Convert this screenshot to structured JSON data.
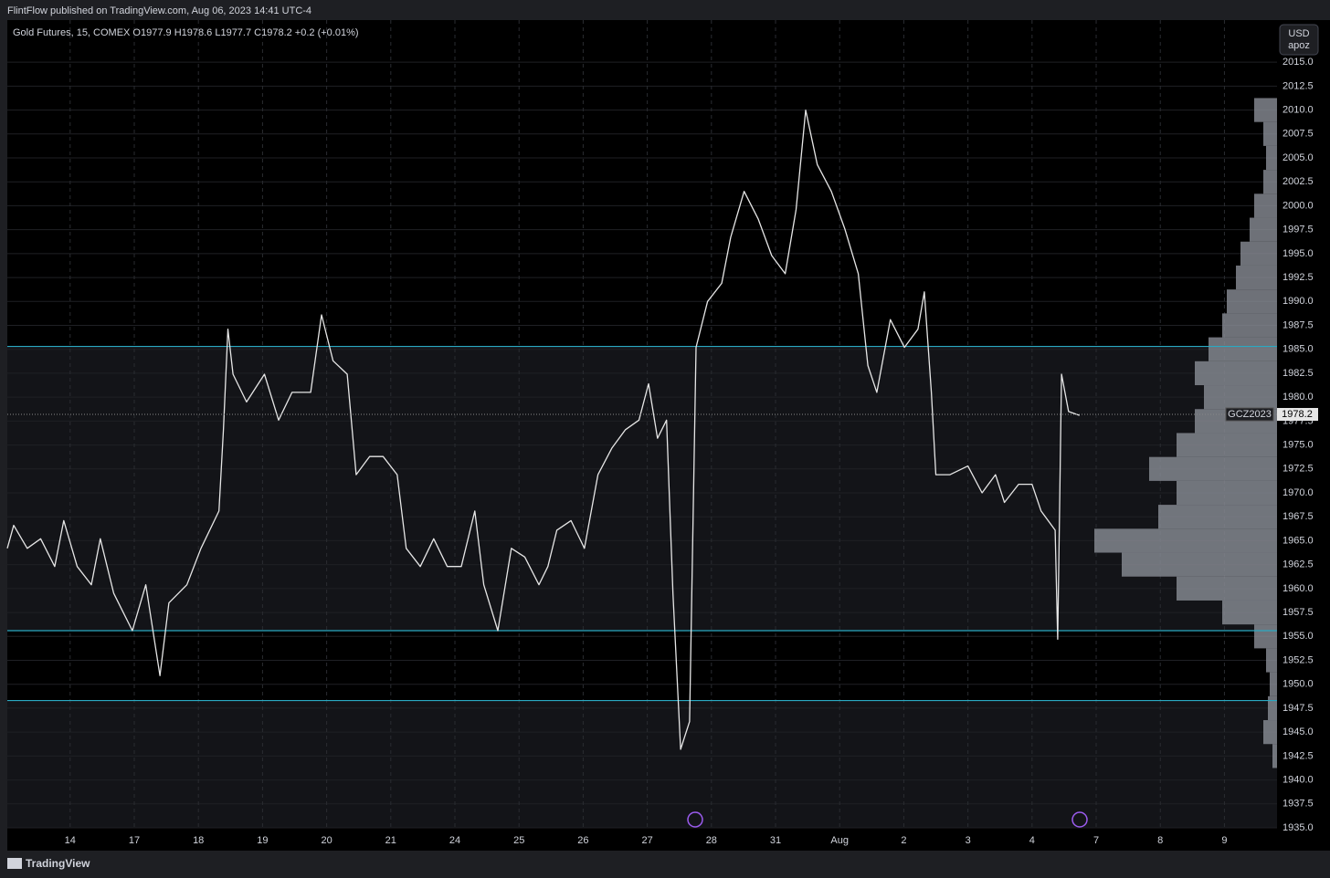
{
  "header": {
    "publisher": "FlintFlow published on TradingView.com, Aug 06, 2023 14:41 UTC-4",
    "footer": "TradingView"
  },
  "chart_data": {
    "type": "line",
    "legend_text": "Gold Futures, 15, COMEX  O1977.9  H1978.6  L1977.7  C1978.2  +0.2 (+0.01%)",
    "currency": "USD",
    "currency_sub": "apoz",
    "symbol": "GCZ2023",
    "last_price": {
      "value": 1978.2,
      "label": "1978.2"
    },
    "x": [
      -0.98,
      -0.88,
      -0.67,
      -0.46,
      -0.24,
      -0.1,
      0.11,
      0.33,
      0.47,
      0.68,
      0.97,
      1.18,
      1.4,
      1.54,
      1.82,
      2.04,
      2.32,
      2.39,
      2.46,
      2.54,
      2.75,
      3.03,
      3.25,
      3.46,
      3.75,
      3.92,
      4.1,
      4.32,
      4.46,
      4.67,
      4.88,
      5.1,
      5.24,
      5.46,
      5.67,
      5.88,
      6.1,
      6.31,
      6.45,
      6.67,
      6.88,
      7.09,
      7.31,
      7.45,
      7.59,
      7.81,
      8.02,
      8.23,
      8.45,
      8.66,
      8.87,
      9.02,
      9.16,
      9.3,
      9.4,
      9.52,
      9.66,
      9.76,
      9.94,
      10.16,
      10.3,
      10.51,
      10.73,
      10.94,
      11.15,
      11.32,
      11.47,
      11.65,
      11.87,
      12.08,
      12.29,
      12.44,
      12.58,
      12.79,
      13.01,
      13.22,
      13.32,
      13.43,
      13.5,
      13.72,
      14.0,
      14.22,
      14.43,
      14.57,
      14.79,
      15.0,
      15.14,
      15.36,
      15.4,
      15.46,
      15.57,
      15.74
    ],
    "series": [
      {
        "color": "#e6e6e6",
        "values": [
          1964.2,
          1966.6,
          1964.2,
          1965.2,
          1962.3,
          1967.1,
          1962.3,
          1960.4,
          1965.2,
          1959.5,
          1955.6,
          1960.4,
          1950.9,
          1958.5,
          1960.4,
          1964.2,
          1968.1,
          1976.6,
          1987.1,
          1982.4,
          1979.5,
          1982.4,
          1977.6,
          1980.5,
          1980.5,
          1988.6,
          1983.8,
          1982.4,
          1971.9,
          1973.8,
          1973.8,
          1971.9,
          1964.2,
          1962.3,
          1965.2,
          1962.3,
          1962.3,
          1968.1,
          1960.4,
          1955.6,
          1964.2,
          1963.3,
          1960.4,
          1962.3,
          1966.1,
          1967.1,
          1964.2,
          1971.9,
          1974.7,
          1976.6,
          1977.6,
          1981.4,
          1975.7,
          1977.6,
          1959.5,
          1943.2,
          1946.1,
          1985.2,
          1990.0,
          1991.9,
          1996.7,
          2001.5,
          1998.6,
          1994.8,
          1992.9,
          1999.6,
          2010.0,
          2004.3,
          2001.5,
          1997.6,
          1992.9,
          1983.3,
          1980.5,
          1988.1,
          1985.2,
          1987.1,
          1991.0,
          1980.5,
          1971.9,
          1971.9,
          1972.8,
          1970.0,
          1971.9,
          1969.0,
          1970.9,
          1970.9,
          1968.1,
          1966.1,
          1954.7,
          1982.4,
          1978.5,
          1978.1
        ]
      }
    ],
    "levels": {
      "color": "#2aa9c2",
      "values": [
        1985.3,
        1955.6,
        1948.3
      ]
    },
    "volume_profile": {
      "color": "#8a8d96",
      "prices": [
        2010,
        2007.5,
        2005,
        2002.5,
        2000,
        1997.5,
        1995,
        1992.5,
        1990,
        1987.5,
        1985,
        1982.5,
        1980,
        1977.5,
        1975,
        1972.5,
        1970,
        1967.5,
        1965,
        1962.5,
        1960,
        1957.5,
        1955,
        1952.5,
        1950,
        1947.5,
        1945,
        1942.5
      ],
      "values": [
        25,
        15,
        12,
        15,
        25,
        30,
        40,
        45,
        55,
        60,
        75,
        90,
        80,
        90,
        110,
        140,
        110,
        130,
        200,
        170,
        110,
        60,
        25,
        12,
        8,
        10,
        15,
        5
      ]
    },
    "xlim": [
      -0.98,
      18.82
    ],
    "ylim": [
      1935,
      2019.4
    ],
    "grid": true,
    "xticks": [
      {
        "value": 0,
        "label": "14"
      },
      {
        "value": 1,
        "label": "17"
      },
      {
        "value": 2,
        "label": "18"
      },
      {
        "value": 3,
        "label": "19"
      },
      {
        "value": 4,
        "label": "20"
      },
      {
        "value": 5,
        "label": "21"
      },
      {
        "value": 6,
        "label": "24"
      },
      {
        "value": 7,
        "label": "25"
      },
      {
        "value": 8,
        "label": "26"
      },
      {
        "value": 9,
        "label": "27"
      },
      {
        "value": 10,
        "label": "28"
      },
      {
        "value": 11,
        "label": "31"
      },
      {
        "value": 12,
        "label": "Aug"
      },
      {
        "value": 13,
        "label": "2"
      },
      {
        "value": 14,
        "label": "3"
      },
      {
        "value": 15,
        "label": "4"
      },
      {
        "value": 16,
        "label": "7"
      },
      {
        "value": 17,
        "label": "8"
      },
      {
        "value": 18,
        "label": "9"
      }
    ],
    "yticks": [
      {
        "value": 1935,
        "label": "1935.0"
      },
      {
        "value": 1937.5,
        "label": "1937.5"
      },
      {
        "value": 1940,
        "label": "1940.0"
      },
      {
        "value": 1942.5,
        "label": "1942.5"
      },
      {
        "value": 1945,
        "label": "1945.0"
      },
      {
        "value": 1947.5,
        "label": "1947.5"
      },
      {
        "value": 1950,
        "label": "1950.0"
      },
      {
        "value": 1952.5,
        "label": "1952.5"
      },
      {
        "value": 1955,
        "label": "1955.0"
      },
      {
        "value": 1957.5,
        "label": "1957.5"
      },
      {
        "value": 1960,
        "label": "1960.0"
      },
      {
        "value": 1962.5,
        "label": "1962.5"
      },
      {
        "value": 1965,
        "label": "1965.0"
      },
      {
        "value": 1967.5,
        "label": "1967.5"
      },
      {
        "value": 1970,
        "label": "1970.0"
      },
      {
        "value": 1972.5,
        "label": "1972.5"
      },
      {
        "value": 1975,
        "label": "1975.0"
      },
      {
        "value": 1977.5,
        "label": "1977.5"
      },
      {
        "value": 1980,
        "label": "1980.0"
      },
      {
        "value": 1982.5,
        "label": "1982.5"
      },
      {
        "value": 1985,
        "label": "1985.0"
      },
      {
        "value": 1987.5,
        "label": "1987.5"
      },
      {
        "value": 1990,
        "label": "1990.0"
      },
      {
        "value": 1992.5,
        "label": "1992.5"
      },
      {
        "value": 1995,
        "label": "1995.0"
      },
      {
        "value": 1997.5,
        "label": "1997.5"
      },
      {
        "value": 2000,
        "label": "2000.0"
      },
      {
        "value": 2002.5,
        "label": "2002.5"
      },
      {
        "value": 2005,
        "label": "2005.0"
      },
      {
        "value": 2007.5,
        "label": "2007.5"
      },
      {
        "value": 2010,
        "label": "2010.0"
      },
      {
        "value": 2012.5,
        "label": "2012.5"
      },
      {
        "value": 2015,
        "label": "2015.0"
      }
    ]
  }
}
